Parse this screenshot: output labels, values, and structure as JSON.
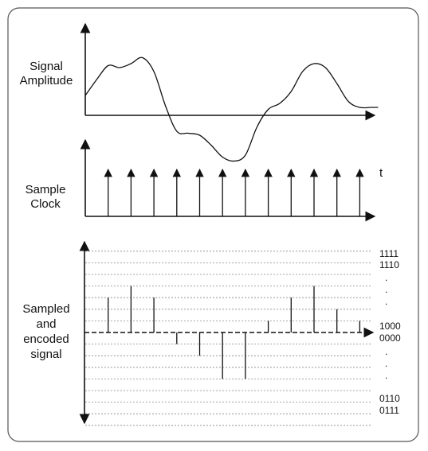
{
  "panels": {
    "amplitude": {
      "label_lines": [
        "Signal",
        "Amplitude"
      ]
    },
    "clock": {
      "label_lines": [
        "Sample",
        "Clock"
      ],
      "time_label": "t"
    },
    "encoded": {
      "label_lines": [
        "Sampled",
        "and",
        "encoded",
        "signal"
      ],
      "codes_top": [
        "1111",
        "1110"
      ],
      "codes_mid": [
        "1000",
        "0000"
      ],
      "codes_bottom": [
        "0110",
        "0111"
      ],
      "ellipsis": "."
    }
  },
  "chart_data": {
    "type": "line",
    "signal": {
      "description_free": true,
      "x": [
        0,
        0.5,
        1,
        1.5,
        2,
        2.5,
        3,
        3.5,
        4,
        4.5,
        5,
        5.5,
        6,
        6.5,
        7,
        7.5,
        8,
        8.5,
        9,
        9.5,
        10,
        10.5,
        11,
        11.5,
        12,
        12.5,
        12.8
      ],
      "y": [
        1.0,
        1.8,
        2.5,
        2.4,
        2.6,
        2.9,
        2.2,
        0.5,
        -0.8,
        -0.9,
        -1.0,
        -1.5,
        -2.1,
        -2.3,
        -2.0,
        -0.6,
        0.3,
        0.6,
        1.2,
        2.2,
        2.6,
        2.4,
        1.6,
        0.7,
        0.4,
        0.4,
        0.4
      ]
    },
    "clock_ticks": [
      1,
      2,
      3,
      4,
      5,
      6,
      7,
      8,
      9,
      10,
      11,
      12
    ],
    "samples": [
      {
        "t": 1,
        "level": 3
      },
      {
        "t": 2,
        "level": 4
      },
      {
        "t": 3,
        "level": 3
      },
      {
        "t": 4,
        "level": -1
      },
      {
        "t": 5,
        "level": -2
      },
      {
        "t": 6,
        "level": -4
      },
      {
        "t": 7,
        "level": -4
      },
      {
        "t": 8,
        "level": 1
      },
      {
        "t": 9,
        "level": 3
      },
      {
        "t": 10,
        "level": 4
      },
      {
        "t": 11,
        "level": 2
      },
      {
        "t": 12,
        "level": 1
      }
    ],
    "level_range": [
      -8,
      7
    ]
  }
}
